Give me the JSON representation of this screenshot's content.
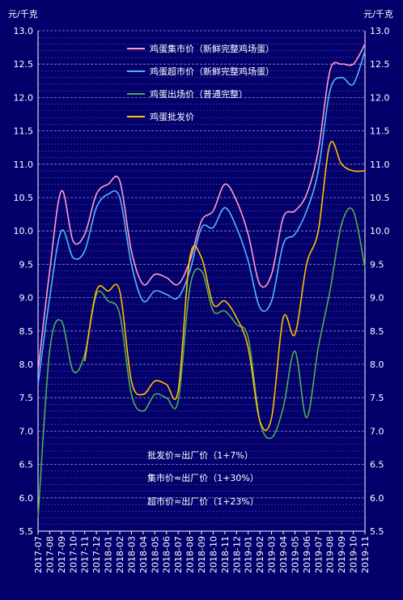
{
  "chart_data": {
    "type": "line",
    "y_unit_left": "元/千克",
    "y_unit_right": "元/千克",
    "ylim": [
      5.5,
      13.0
    ],
    "y_ticks": [
      "5.5",
      "6.0",
      "6.5",
      "7.0",
      "7.5",
      "8.0",
      "8.5",
      "9.0",
      "9.5",
      "10.0",
      "10.5",
      "11.0",
      "11.5",
      "12.0",
      "12.5",
      "13.0"
    ],
    "categories": [
      "2017-07",
      "2017-08",
      "2017-09",
      "2017-10",
      "2017-11",
      "2017-12",
      "2018-01",
      "2018-02",
      "2018-03",
      "2018-04",
      "2018-05",
      "2018-06",
      "2018-07",
      "2018-08",
      "2018-09",
      "2018-10",
      "2018-11",
      "2018-12",
      "2019-01",
      "2019-02",
      "2019-03",
      "2019-04",
      "2019-05",
      "2019-06",
      "2019-07",
      "2019-08",
      "2019-09",
      "2019-10",
      "2019-11"
    ],
    "grid": true,
    "legend_position": "top-center",
    "series": [
      {
        "name": "鸡蛋集市价（新鲜完整鸡场蛋）",
        "color": "#ff9ecb",
        "values": [
          7.9,
          9.4,
          10.6,
          9.85,
          9.95,
          10.55,
          10.7,
          10.75,
          9.7,
          9.2,
          9.35,
          9.3,
          9.2,
          9.55,
          10.15,
          10.3,
          10.7,
          10.45,
          9.95,
          9.2,
          9.35,
          10.2,
          10.3,
          10.55,
          11.2,
          12.4,
          12.5,
          12.5,
          12.8
        ]
      },
      {
        "name": "鸡蛋超市价（新鲜完整鸡场蛋）",
        "color": "#4fb7ff",
        "values": [
          7.7,
          9.0,
          10.0,
          9.6,
          9.7,
          10.35,
          10.55,
          10.5,
          9.5,
          8.95,
          9.1,
          9.05,
          9.0,
          9.4,
          10.05,
          10.05,
          10.35,
          10.05,
          9.55,
          8.85,
          8.95,
          9.8,
          9.95,
          10.3,
          10.9,
          12.1,
          12.3,
          12.2,
          12.7
        ]
      },
      {
        "name": "鸡蛋出场价（普通完整）",
        "color": "#4caf50",
        "values": [
          5.7,
          8.2,
          8.65,
          7.9,
          8.15,
          9.05,
          8.95,
          8.75,
          7.55,
          7.3,
          7.55,
          7.5,
          7.45,
          9.15,
          9.4,
          8.8,
          8.8,
          8.6,
          8.4,
          7.15,
          6.9,
          7.35,
          8.2,
          7.2,
          8.25,
          9.1,
          10.1,
          10.3,
          9.45
        ]
      },
      {
        "name": "鸡蛋批发价",
        "color": "#ffc000",
        "values": [
          null,
          null,
          null,
          null,
          8.05,
          9.1,
          9.1,
          9.1,
          7.75,
          7.55,
          7.75,
          7.7,
          7.6,
          9.6,
          9.6,
          8.9,
          8.95,
          8.7,
          8.25,
          7.15,
          7.2,
          8.7,
          8.45,
          9.5,
          10.0,
          11.3,
          11.0,
          10.9,
          10.9
        ]
      }
    ],
    "annotations": [
      "批发价≈出厂价（1+7%）",
      "集市价≈出厂价（1+30%）",
      "超市价≈出厂价（1+23%）"
    ]
  }
}
